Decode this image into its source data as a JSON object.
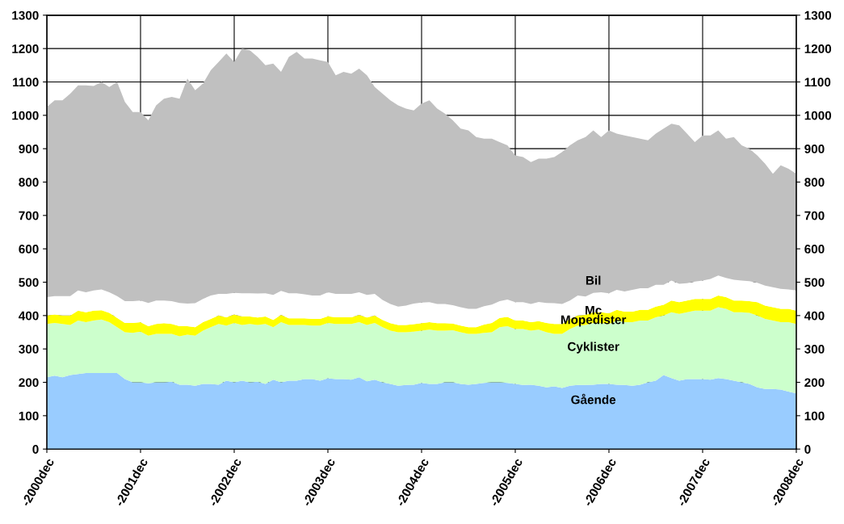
{
  "chart_data": {
    "type": "area",
    "stacked": true,
    "categories": [
      "-2000dec",
      null,
      null,
      null,
      null,
      null,
      null,
      null,
      null,
      null,
      null,
      null,
      "-2001dec",
      null,
      null,
      null,
      null,
      null,
      null,
      null,
      null,
      null,
      null,
      null,
      "-2002dec",
      null,
      null,
      null,
      null,
      null,
      null,
      null,
      null,
      null,
      null,
      null,
      "-2003dec",
      null,
      null,
      null,
      null,
      null,
      null,
      null,
      null,
      null,
      null,
      null,
      "-2004dec",
      null,
      null,
      null,
      null,
      null,
      null,
      null,
      null,
      null,
      null,
      null,
      "-2005dec",
      null,
      null,
      null,
      null,
      null,
      null,
      null,
      null,
      null,
      null,
      null,
      "-2006dec",
      null,
      null,
      null,
      null,
      null,
      null,
      null,
      null,
      null,
      null,
      null,
      "-2007dec",
      null,
      null,
      null,
      null,
      null,
      null,
      null,
      null,
      null,
      null,
      null,
      "-2008dec"
    ],
    "series": [
      {
        "name": "Gående",
        "color": "#99ccff",
        "values": [
          215,
          220,
          215,
          222,
          225,
          228,
          228,
          228,
          228,
          228,
          210,
          200,
          200,
          197,
          200,
          200,
          202,
          193,
          193,
          190,
          195,
          195,
          193,
          205,
          200,
          205,
          200,
          202,
          195,
          208,
          200,
          205,
          205,
          210,
          210,
          205,
          212,
          210,
          210,
          208,
          215,
          203,
          208,
          200,
          195,
          190,
          192,
          193,
          198,
          195,
          195,
          200,
          200,
          195,
          193,
          195,
          198,
          200,
          200,
          198,
          195,
          192,
          193,
          190,
          185,
          188,
          183,
          190,
          192,
          192,
          193,
          195,
          195,
          193,
          192,
          190,
          193,
          200,
          205,
          222,
          213,
          205,
          210,
          210,
          210,
          208,
          213,
          210,
          205,
          200,
          195,
          185,
          180,
          180,
          178,
          172,
          167
        ]
      },
      {
        "name": "Cyklister",
        "color": "#ccffcc",
        "values": [
          160,
          158,
          160,
          150,
          160,
          152,
          157,
          160,
          152,
          137,
          140,
          148,
          152,
          143,
          145,
          145,
          143,
          145,
          150,
          150,
          160,
          170,
          182,
          165,
          178,
          167,
          175,
          170,
          180,
          157,
          180,
          167,
          167,
          162,
          160,
          165,
          166,
          165,
          165,
          167,
          165,
          169,
          170,
          165,
          160,
          160,
          158,
          159,
          157,
          163,
          160,
          155,
          156,
          155,
          152,
          150,
          150,
          150,
          165,
          170,
          165,
          168,
          162,
          168,
          165,
          157,
          162,
          170,
          178,
          180,
          185,
          183,
          180,
          192,
          188,
          190,
          192,
          185,
          190,
          178,
          197,
          200,
          200,
          205,
          205,
          207,
          212,
          210,
          205,
          210,
          213,
          215,
          210,
          205,
          202,
          208,
          208
        ]
      },
      {
        "name": "Mopedister",
        "color": "#ffff00",
        "values": [
          25,
          25,
          25,
          28,
          30,
          30,
          30,
          28,
          28,
          28,
          28,
          30,
          28,
          28,
          30,
          32,
          30,
          30,
          25,
          25,
          25,
          25,
          25,
          25,
          25,
          25,
          22,
          22,
          22,
          22,
          22,
          20,
          20,
          20,
          20,
          20,
          20,
          20,
          20,
          20,
          22,
          22,
          22,
          22,
          22,
          22,
          22,
          22,
          22,
          22,
          22,
          22,
          20,
          20,
          20,
          20,
          25,
          28,
          28,
          28,
          25,
          25,
          25,
          25,
          28,
          30,
          30,
          30,
          30,
          30,
          32,
          32,
          32,
          32,
          32,
          32,
          32,
          32,
          32,
          32,
          35,
          35,
          35,
          35,
          35,
          35,
          35,
          35,
          35,
          35,
          35,
          40,
          40,
          40,
          40,
          40,
          40
        ]
      },
      {
        "name": "Mc",
        "color": "#ffffff",
        "values": [
          55,
          55,
          58,
          58,
          60,
          60,
          60,
          62,
          62,
          65,
          65,
          65,
          65,
          70,
          70,
          68,
          68,
          70,
          68,
          72,
          70,
          70,
          65,
          70,
          65,
          70,
          70,
          72,
          70,
          75,
          72,
          75,
          75,
          72,
          70,
          70,
          72,
          70,
          70,
          70,
          68,
          68,
          65,
          60,
          58,
          55,
          58,
          62,
          62,
          60,
          58,
          58,
          55,
          55,
          55,
          55,
          55,
          55,
          50,
          52,
          55,
          55,
          55,
          58,
          60,
          62,
          60,
          55,
          60,
          55,
          58,
          60,
          60,
          60,
          60,
          65,
          65,
          65,
          65,
          60,
          60,
          55,
          52,
          52,
          55,
          60,
          60,
          58,
          62,
          60,
          60,
          58,
          60,
          60,
          60,
          58,
          60
        ]
      },
      {
        "name": "Bil",
        "color": "#c0c0c0",
        "values": [
          570,
          587,
          587,
          607,
          615,
          620,
          613,
          622,
          615,
          642,
          597,
          567,
          565,
          547,
          585,
          605,
          612,
          612,
          674,
          638,
          645,
          675,
          695,
          720,
          692,
          733,
          728,
          709,
          683,
          693,
          656,
          708,
          723,
          706,
          710,
          705,
          690,
          655,
          665,
          660,
          670,
          658,
          620,
          618,
          610,
          603,
          590,
          579,
          596,
          605,
          585,
          570,
          554,
          535,
          535,
          515,
          502,
          497,
          477,
          462,
          440,
          435,
          425,
          429,
          432,
          438,
          455,
          465,
          465,
          478,
          487,
          465,
          488,
          468,
          468,
          458,
          448,
          443,
          453,
          468,
          470,
          475,
          448,
          418,
          435,
          430,
          435,
          417,
          428,
          405,
          397,
          382,
          365,
          340,
          370,
          362,
          350
        ]
      }
    ],
    "ylim": [
      0,
      1300
    ],
    "yticks": [
      0,
      100,
      200,
      300,
      400,
      500,
      600,
      700,
      800,
      900,
      1000,
      1100,
      1200,
      1300
    ],
    "y2lim": [
      0,
      1300
    ],
    "y2ticks": [
      0,
      100,
      200,
      300,
      400,
      500,
      600,
      700,
      800,
      900,
      1000,
      1100,
      1200,
      1300
    ],
    "grid": true
  }
}
